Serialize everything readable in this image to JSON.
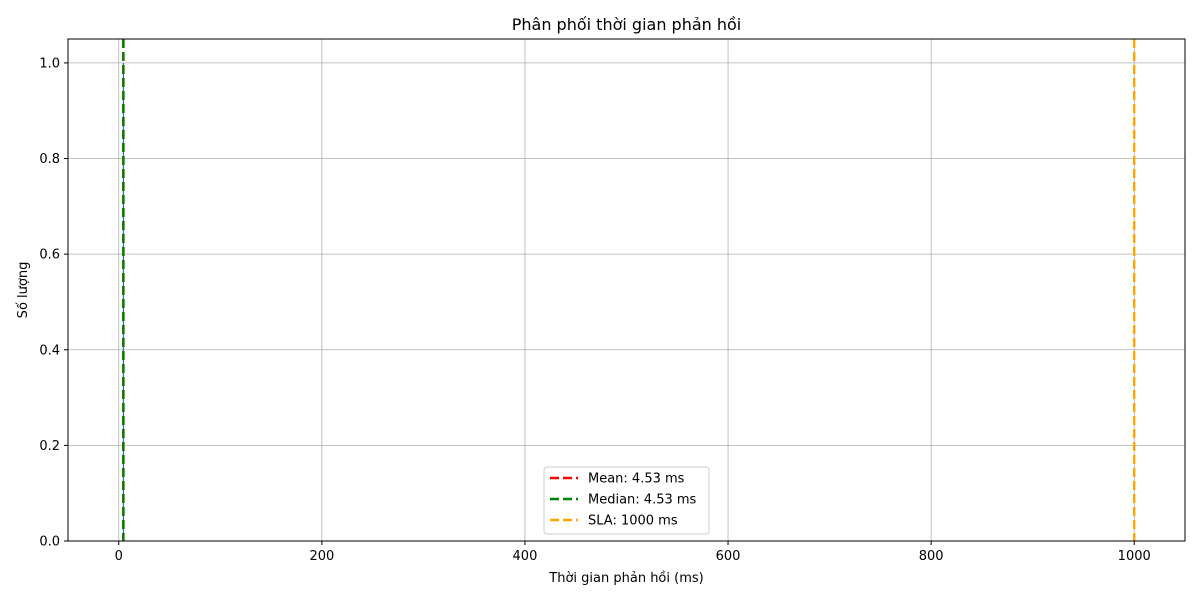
{
  "chart_data": {
    "type": "histogram",
    "title": "Phân phối thời gian phản hồi",
    "xlabel": "Thời gian phản hồi (ms)",
    "ylabel": "Số lượng",
    "xlim": [
      -50,
      1050
    ],
    "ylim": [
      0,
      1.05
    ],
    "x_ticks": [
      0,
      200,
      400,
      600,
      800,
      1000
    ],
    "y_ticks": [
      0.0,
      0.2,
      0.4,
      0.6,
      0.8,
      1.0
    ],
    "x_tick_labels": [
      "0",
      "200",
      "400",
      "600",
      "800",
      "1000"
    ],
    "y_tick_labels": [
      "0.0",
      "0.2",
      "0.4",
      "0.6",
      "0.8",
      "1.0"
    ],
    "grid": true,
    "legend_position": "bottom-center",
    "bars": [
      {
        "x_start": 4.53,
        "x_end": 4.53,
        "count": 1
      }
    ],
    "reference_lines": [
      {
        "name": "Mean: 4.53 ms",
        "x": 4.53,
        "color": "#ff0000",
        "style": "dashed"
      },
      {
        "name": "Median: 4.53 ms",
        "x": 4.53,
        "color": "#008000",
        "style": "dashed"
      },
      {
        "name": "SLA: 1000 ms",
        "x": 1000,
        "color": "#ffa500",
        "style": "dashed"
      }
    ]
  }
}
